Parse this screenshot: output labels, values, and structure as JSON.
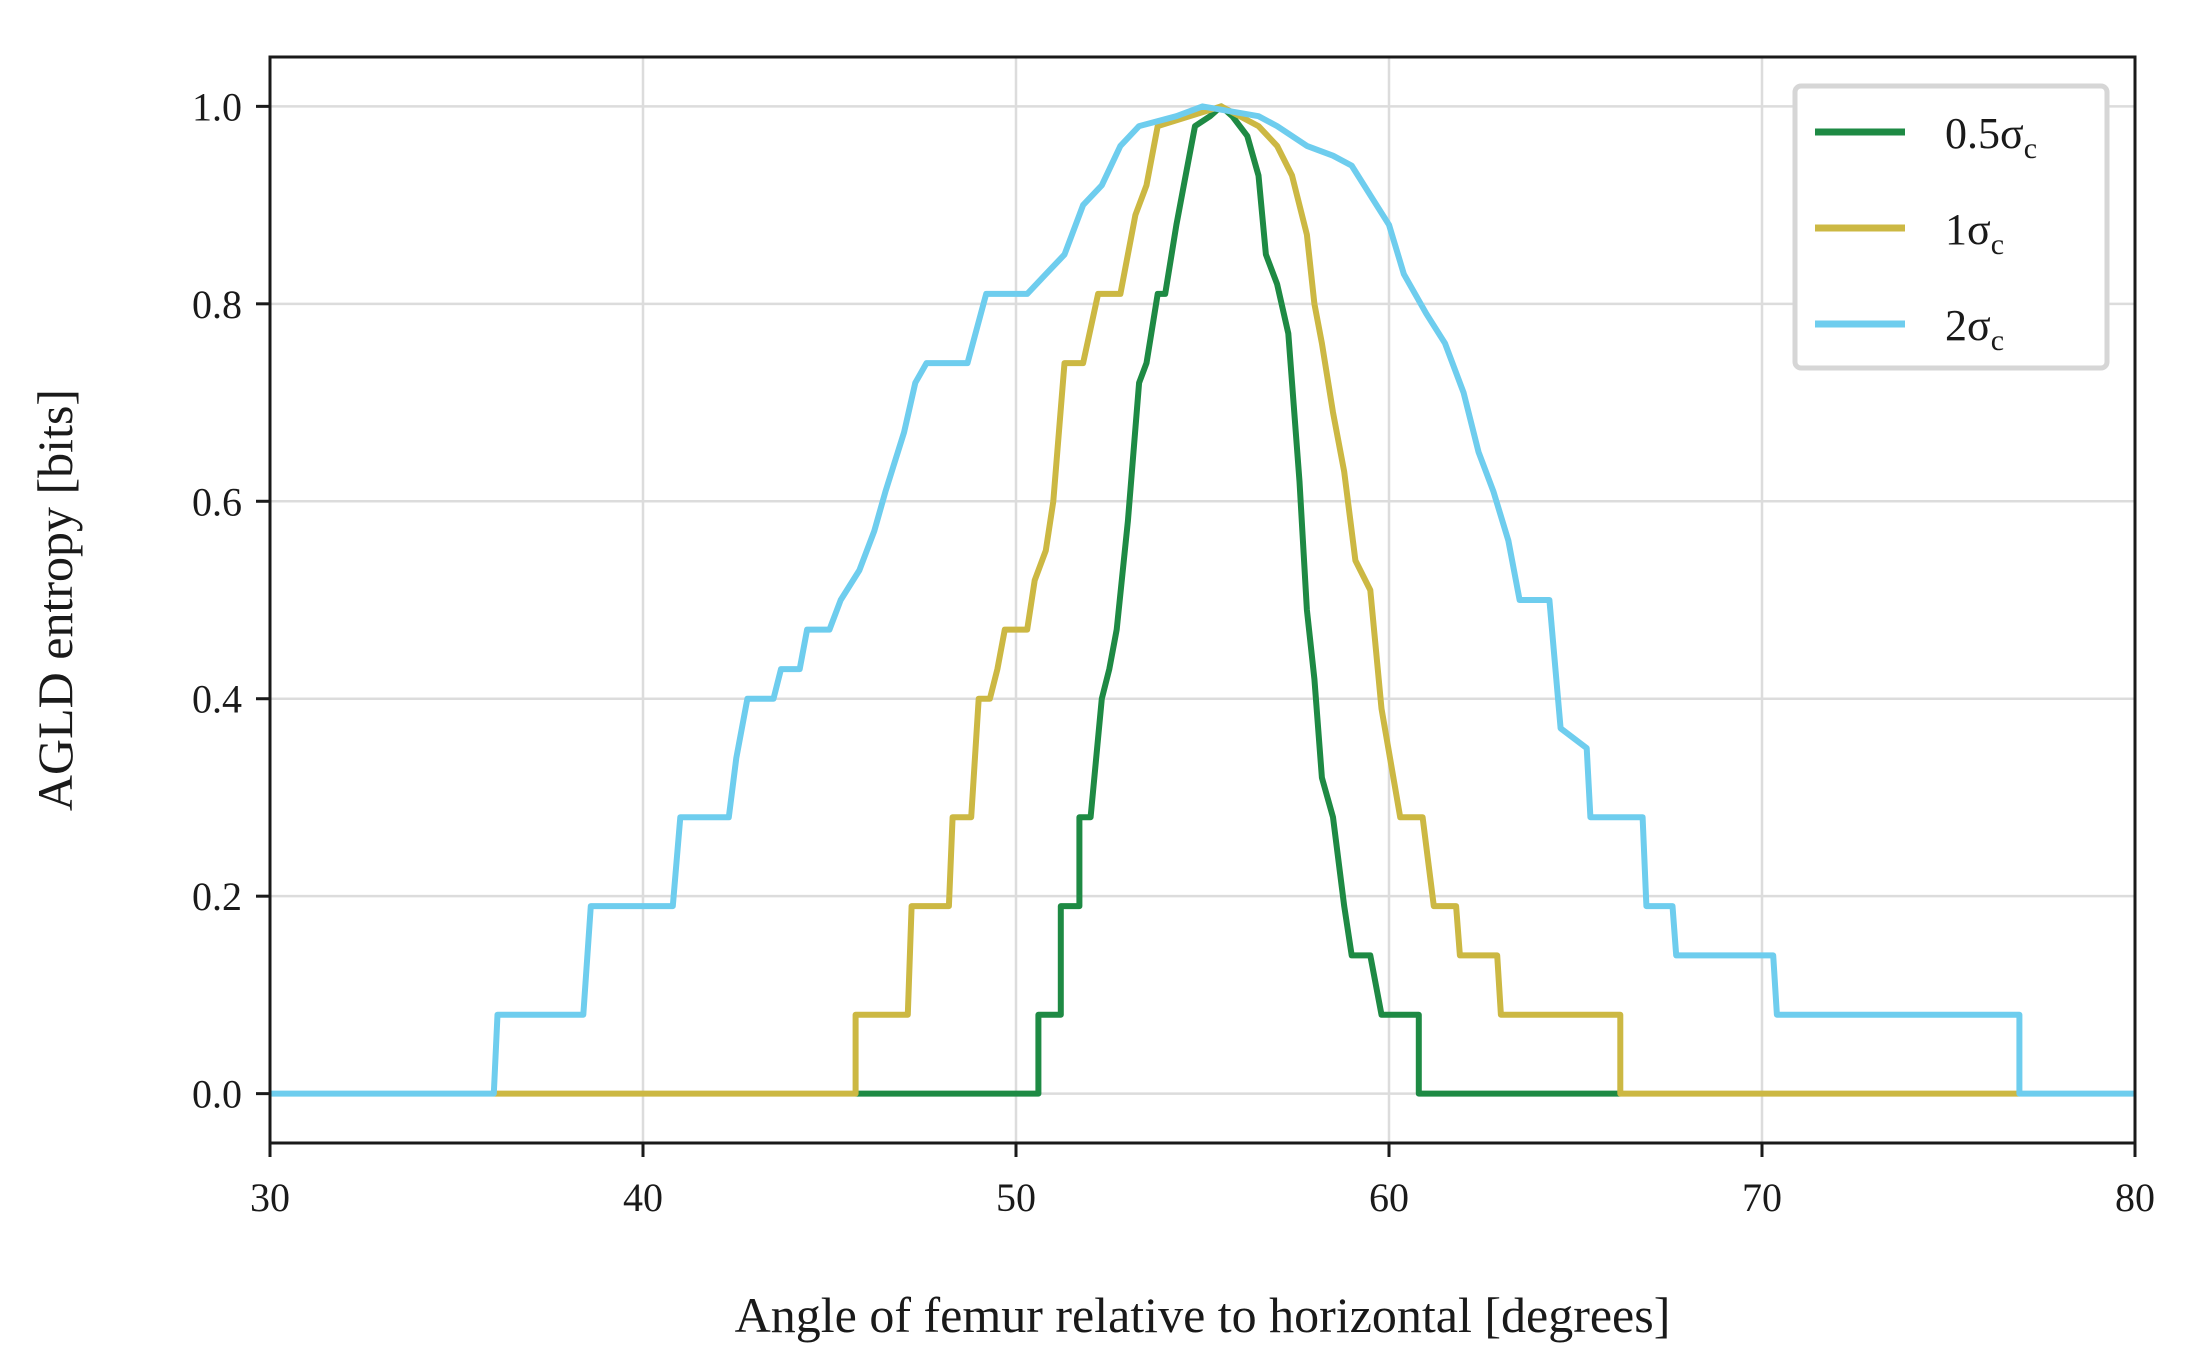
{
  "chart_data": {
    "type": "line",
    "xlabel": "Angle of femur relative to horizontal [degrees]",
    "ylabel": "AGLD entropy [bits]",
    "xlim": [
      30,
      80
    ],
    "ylim": [
      -0.05,
      1.05
    ],
    "xticks": [
      "30",
      "40",
      "50",
      "60",
      "70",
      "80"
    ],
    "yticks": [
      "0.0",
      "0.2",
      "0.4",
      "0.6",
      "0.8",
      "1.0"
    ],
    "grid": true,
    "legend_position": "top-right",
    "series": [
      {
        "name": "0.5σ",
        "name_subscript": "c",
        "color": "#1e8a44",
        "points": [
          [
            45.7,
            0.0
          ],
          [
            50.6,
            0.0
          ],
          [
            50.6,
            0.08
          ],
          [
            51.2,
            0.08
          ],
          [
            51.2,
            0.19
          ],
          [
            51.7,
            0.19
          ],
          [
            51.7,
            0.28
          ],
          [
            52.0,
            0.28
          ],
          [
            52.3,
            0.4
          ],
          [
            52.5,
            0.43
          ],
          [
            52.7,
            0.47
          ],
          [
            53.0,
            0.58
          ],
          [
            53.3,
            0.72
          ],
          [
            53.5,
            0.74
          ],
          [
            53.8,
            0.81
          ],
          [
            54.0,
            0.81
          ],
          [
            54.3,
            0.88
          ],
          [
            54.5,
            0.92
          ],
          [
            54.8,
            0.98
          ],
          [
            55.2,
            0.99
          ],
          [
            55.5,
            1.0
          ],
          [
            55.8,
            0.99
          ],
          [
            56.2,
            0.97
          ],
          [
            56.5,
            0.93
          ],
          [
            56.7,
            0.85
          ],
          [
            57.0,
            0.82
          ],
          [
            57.3,
            0.77
          ],
          [
            57.6,
            0.62
          ],
          [
            57.8,
            0.49
          ],
          [
            58.0,
            0.42
          ],
          [
            58.2,
            0.32
          ],
          [
            58.5,
            0.28
          ],
          [
            58.8,
            0.19
          ],
          [
            59.0,
            0.14
          ],
          [
            59.5,
            0.14
          ],
          [
            59.8,
            0.08
          ],
          [
            60.8,
            0.08
          ],
          [
            60.8,
            0.0
          ],
          [
            66.2,
            0.0
          ]
        ]
      },
      {
        "name": "1σ",
        "name_subscript": "c",
        "color": "#ccb843",
        "points": [
          [
            36.0,
            0.0
          ],
          [
            45.7,
            0.0
          ],
          [
            45.7,
            0.08
          ],
          [
            47.1,
            0.08
          ],
          [
            47.2,
            0.19
          ],
          [
            48.2,
            0.19
          ],
          [
            48.3,
            0.28
          ],
          [
            48.8,
            0.28
          ],
          [
            49.0,
            0.4
          ],
          [
            49.3,
            0.4
          ],
          [
            49.5,
            0.43
          ],
          [
            49.7,
            0.47
          ],
          [
            50.3,
            0.47
          ],
          [
            50.5,
            0.52
          ],
          [
            50.8,
            0.55
          ],
          [
            51.0,
            0.6
          ],
          [
            51.3,
            0.74
          ],
          [
            51.8,
            0.74
          ],
          [
            52.2,
            0.81
          ],
          [
            52.8,
            0.81
          ],
          [
            53.2,
            0.89
          ],
          [
            53.5,
            0.92
          ],
          [
            53.8,
            0.98
          ],
          [
            55.5,
            1.0
          ],
          [
            56.5,
            0.98
          ],
          [
            57.0,
            0.96
          ],
          [
            57.4,
            0.93
          ],
          [
            57.8,
            0.87
          ],
          [
            58.0,
            0.8
          ],
          [
            58.2,
            0.76
          ],
          [
            58.5,
            0.69
          ],
          [
            58.8,
            0.63
          ],
          [
            59.1,
            0.54
          ],
          [
            59.5,
            0.51
          ],
          [
            59.8,
            0.39
          ],
          [
            60.3,
            0.28
          ],
          [
            60.9,
            0.28
          ],
          [
            61.2,
            0.19
          ],
          [
            61.8,
            0.19
          ],
          [
            61.9,
            0.14
          ],
          [
            62.9,
            0.14
          ],
          [
            63.0,
            0.08
          ],
          [
            66.2,
            0.08
          ],
          [
            66.2,
            0.0
          ],
          [
            76.9,
            0.0
          ]
        ]
      },
      {
        "name": "2σ",
        "name_subscript": "c",
        "color": "#6ecdee",
        "points": [
          [
            30.0,
            0.0
          ],
          [
            36.0,
            0.0
          ],
          [
            36.1,
            0.08
          ],
          [
            38.4,
            0.08
          ],
          [
            38.6,
            0.19
          ],
          [
            40.8,
            0.19
          ],
          [
            41.0,
            0.28
          ],
          [
            42.3,
            0.28
          ],
          [
            42.5,
            0.34
          ],
          [
            42.8,
            0.4
          ],
          [
            43.5,
            0.4
          ],
          [
            43.7,
            0.43
          ],
          [
            44.2,
            0.43
          ],
          [
            44.4,
            0.47
          ],
          [
            45.0,
            0.47
          ],
          [
            45.3,
            0.5
          ],
          [
            45.8,
            0.53
          ],
          [
            46.2,
            0.57
          ],
          [
            46.5,
            0.61
          ],
          [
            47.0,
            0.67
          ],
          [
            47.3,
            0.72
          ],
          [
            47.6,
            0.74
          ],
          [
            48.7,
            0.74
          ],
          [
            49.2,
            0.81
          ],
          [
            50.3,
            0.81
          ],
          [
            50.8,
            0.83
          ],
          [
            51.3,
            0.85
          ],
          [
            51.8,
            0.9
          ],
          [
            52.3,
            0.92
          ],
          [
            52.8,
            0.96
          ],
          [
            53.3,
            0.98
          ],
          [
            54.3,
            0.99
          ],
          [
            55.0,
            1.0
          ],
          [
            56.5,
            0.99
          ],
          [
            57.0,
            0.98
          ],
          [
            57.8,
            0.96
          ],
          [
            58.5,
            0.95
          ],
          [
            59.0,
            0.94
          ],
          [
            59.5,
            0.91
          ],
          [
            60.0,
            0.88
          ],
          [
            60.4,
            0.83
          ],
          [
            61.0,
            0.79
          ],
          [
            61.5,
            0.76
          ],
          [
            62.0,
            0.71
          ],
          [
            62.4,
            0.65
          ],
          [
            62.8,
            0.61
          ],
          [
            63.2,
            0.56
          ],
          [
            63.5,
            0.5
          ],
          [
            64.3,
            0.5
          ],
          [
            64.6,
            0.37
          ],
          [
            65.3,
            0.35
          ],
          [
            65.4,
            0.28
          ],
          [
            66.8,
            0.28
          ],
          [
            66.9,
            0.19
          ],
          [
            67.6,
            0.19
          ],
          [
            67.7,
            0.14
          ],
          [
            70.3,
            0.14
          ],
          [
            70.4,
            0.08
          ],
          [
            76.9,
            0.08
          ],
          [
            76.9,
            0.0
          ],
          [
            80.0,
            0.0
          ]
        ]
      }
    ]
  }
}
